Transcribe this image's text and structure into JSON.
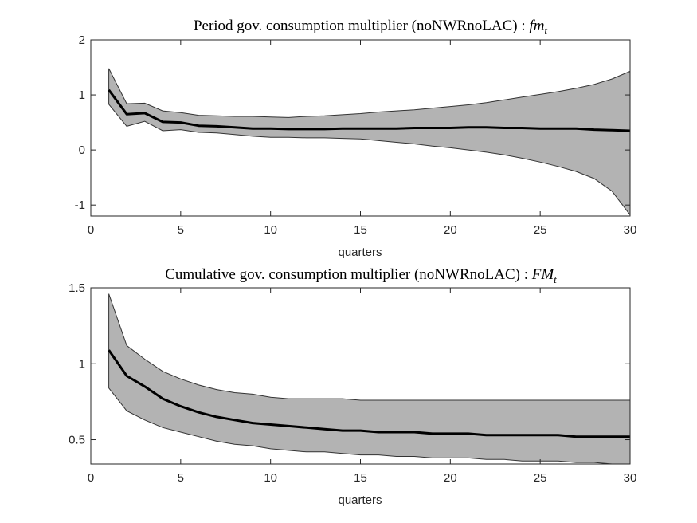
{
  "chart_data": [
    {
      "type": "area",
      "title_text": "Period gov. consumption multiplier (noNWRnoLAC) : ",
      "title_symbol": "fm",
      "title_subscript": "t",
      "xlabel": "quarters",
      "ylabel": "",
      "xlim": [
        0,
        30
      ],
      "ylim": [
        -1.2,
        2
      ],
      "xticks": [
        0,
        5,
        10,
        15,
        20,
        25,
        30
      ],
      "yticks": [
        -1,
        0,
        1,
        2
      ],
      "grid": false,
      "band_color": "#b3b3b3",
      "line_color": "#000000",
      "x": [
        1,
        2,
        3,
        4,
        5,
        6,
        7,
        8,
        9,
        10,
        11,
        12,
        13,
        14,
        15,
        16,
        17,
        18,
        19,
        20,
        21,
        22,
        23,
        24,
        25,
        26,
        27,
        28,
        29,
        30
      ],
      "series": [
        {
          "values": [
            1.48,
            0.84,
            0.85,
            0.71,
            0.68,
            0.63,
            0.62,
            0.61,
            0.61,
            0.6,
            0.59,
            0.61,
            0.62,
            0.64,
            0.66,
            0.69,
            0.71,
            0.73,
            0.76,
            0.79,
            0.82,
            0.86,
            0.91,
            0.96,
            1.01,
            1.06,
            1.12,
            1.19,
            1.29,
            1.43
          ]
        },
        {
          "values": [
            1.09,
            0.65,
            0.67,
            0.51,
            0.5,
            0.44,
            0.43,
            0.41,
            0.39,
            0.39,
            0.38,
            0.38,
            0.38,
            0.39,
            0.39,
            0.39,
            0.39,
            0.4,
            0.4,
            0.4,
            0.41,
            0.41,
            0.4,
            0.4,
            0.39,
            0.39,
            0.39,
            0.37,
            0.36,
            0.35
          ]
        },
        {
          "values": [
            0.83,
            0.43,
            0.52,
            0.35,
            0.37,
            0.32,
            0.31,
            0.28,
            0.25,
            0.23,
            0.23,
            0.22,
            0.22,
            0.21,
            0.2,
            0.17,
            0.14,
            0.11,
            0.07,
            0.04,
            0.0,
            -0.04,
            -0.09,
            -0.15,
            -0.22,
            -0.3,
            -0.39,
            -0.52,
            -0.75,
            -1.18
          ]
        }
      ]
    },
    {
      "type": "area",
      "title_text": "Cumulative gov. consumption multiplier (noNWRnoLAC) : ",
      "title_symbol": "FM",
      "title_subscript": "t",
      "xlabel": "quarters",
      "ylabel": "",
      "xlim": [
        0,
        30
      ],
      "ylim": [
        0.34,
        1.5
      ],
      "xticks": [
        0,
        5,
        10,
        15,
        20,
        25,
        30
      ],
      "yticks": [
        0.5,
        1,
        1.5
      ],
      "grid": false,
      "band_color": "#b3b3b3",
      "line_color": "#000000",
      "x": [
        1,
        2,
        3,
        4,
        5,
        6,
        7,
        8,
        9,
        10,
        11,
        12,
        13,
        14,
        15,
        16,
        17,
        18,
        19,
        20,
        21,
        22,
        23,
        24,
        25,
        26,
        27,
        28,
        29,
        30
      ],
      "series": [
        {
          "values": [
            1.46,
            1.12,
            1.03,
            0.95,
            0.9,
            0.86,
            0.83,
            0.81,
            0.8,
            0.78,
            0.77,
            0.77,
            0.77,
            0.77,
            0.76,
            0.76,
            0.76,
            0.76,
            0.76,
            0.76,
            0.76,
            0.76,
            0.76,
            0.76,
            0.76,
            0.76,
            0.76,
            0.76,
            0.76,
            0.76
          ]
        },
        {
          "values": [
            1.09,
            0.92,
            0.85,
            0.77,
            0.72,
            0.68,
            0.65,
            0.63,
            0.61,
            0.6,
            0.59,
            0.58,
            0.57,
            0.56,
            0.56,
            0.55,
            0.55,
            0.55,
            0.54,
            0.54,
            0.54,
            0.53,
            0.53,
            0.53,
            0.53,
            0.53,
            0.52,
            0.52,
            0.52,
            0.52
          ]
        },
        {
          "values": [
            0.84,
            0.69,
            0.63,
            0.58,
            0.55,
            0.52,
            0.49,
            0.47,
            0.46,
            0.44,
            0.43,
            0.42,
            0.42,
            0.41,
            0.4,
            0.4,
            0.39,
            0.39,
            0.38,
            0.38,
            0.38,
            0.37,
            0.37,
            0.36,
            0.36,
            0.36,
            0.35,
            0.35,
            0.34,
            0.34
          ]
        }
      ]
    }
  ]
}
